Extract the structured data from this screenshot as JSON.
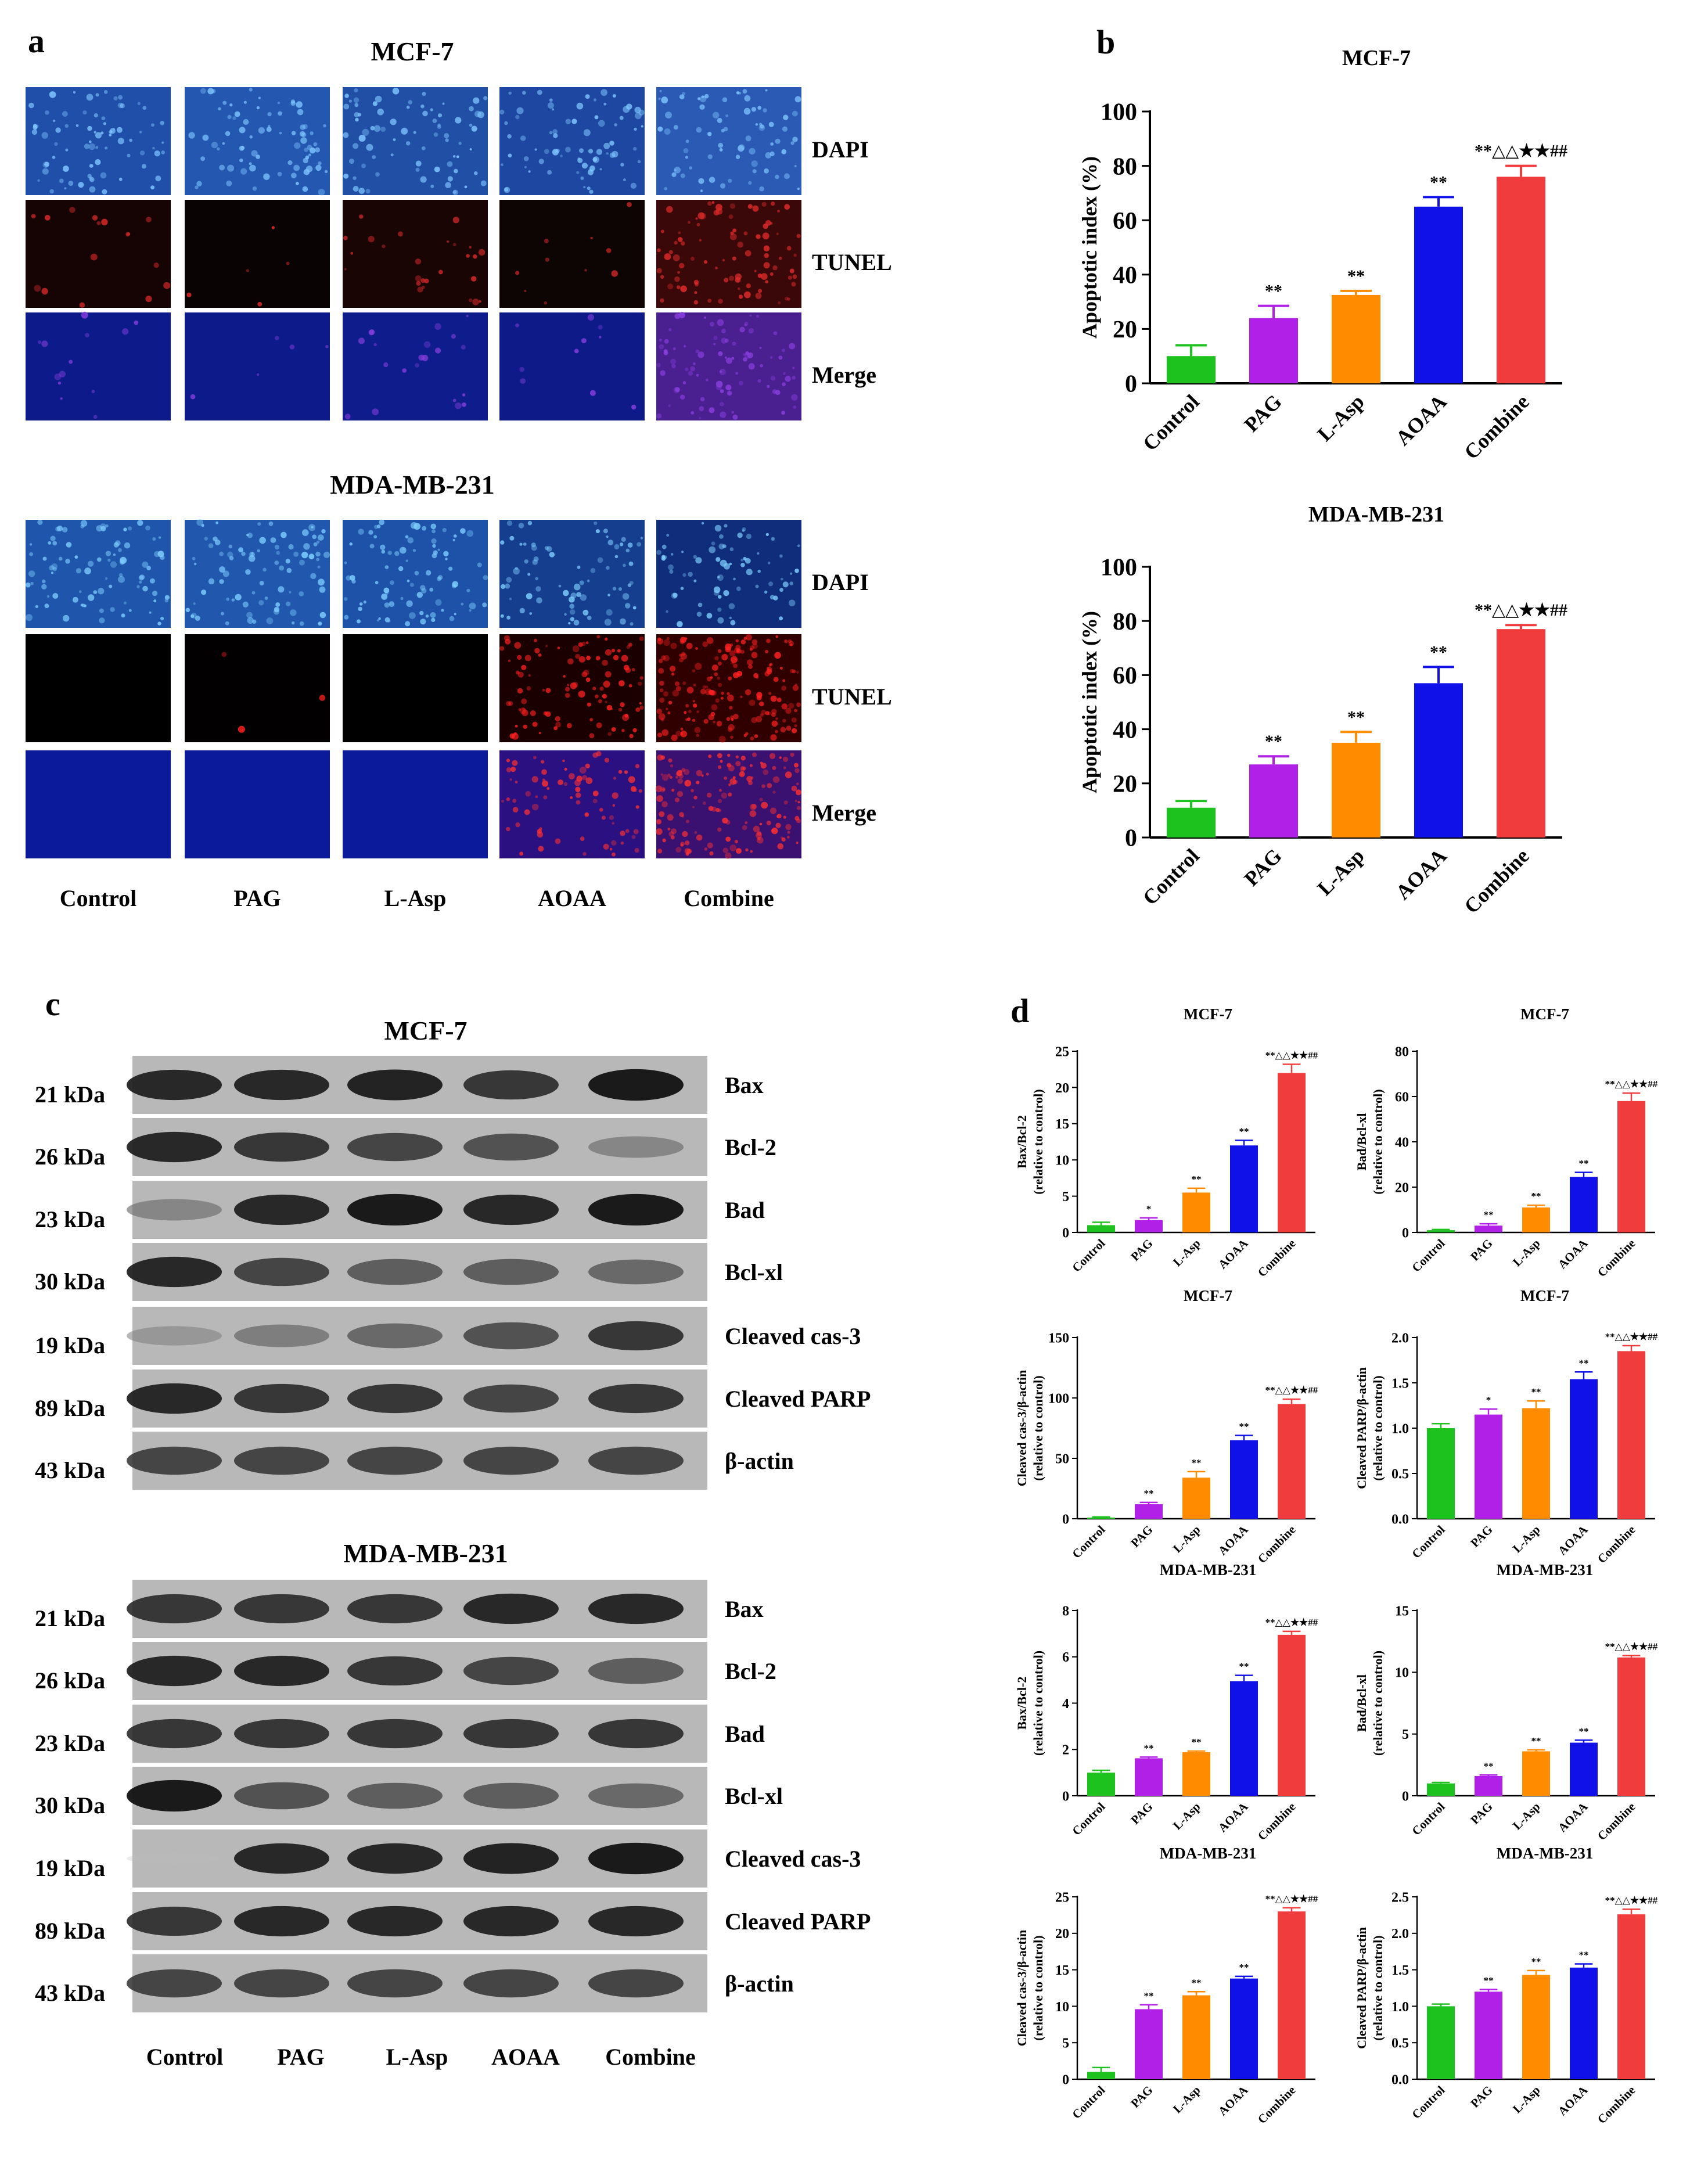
{
  "panels": {
    "a": {
      "letter": "a",
      "treatments": [
        "Control",
        "PAG",
        "L-Asp",
        "AOAA",
        "Combine"
      ],
      "channels": [
        "DAPI",
        "TUNEL",
        "Merge"
      ],
      "blocks": [
        {
          "cell_line": "MCF-7",
          "tiles": [
            {
              "channel": "DAPI",
              "colors": [
                "#1f4fa8",
                "#2457b0",
                "#214fa6",
                "#1d47a0",
                "#2a5ab4"
              ],
              "dots": "#7fc8ff",
              "density": [
                0.3,
                0.3,
                0.3,
                0.3,
                0.3
              ]
            },
            {
              "channel": "TUNEL",
              "colors": [
                "#160404",
                "#0a0303",
                "#1a0505",
                "#0d0404",
                "#3a0808"
              ],
              "dots": "#e02a2a",
              "density": [
                0.06,
                0.02,
                0.1,
                0.04,
                0.35
              ]
            },
            {
              "channel": "Merge",
              "colors": [
                "#0d1a8a",
                "#0d1a8a",
                "#0f1c8c",
                "#0e1a88",
                "#4a1f90"
              ],
              "dots": "#8a3fe0",
              "density": [
                0.05,
                0.02,
                0.08,
                0.04,
                0.35
              ]
            }
          ]
        },
        {
          "cell_line": "MDA-MB-231",
          "tiles": [
            {
              "channel": "DAPI",
              "colors": [
                "#1f55aa",
                "#2157ad",
                "#1e52a8",
                "#163e8e",
                "#0f2d7a"
              ],
              "dots": "#7ed0ff",
              "density": [
                0.35,
                0.35,
                0.35,
                0.3,
                0.3
              ]
            },
            {
              "channel": "TUNEL",
              "colors": [
                "#000000",
                "#020000",
                "#000000",
                "#1a0000",
                "#300000"
              ],
              "dots": "#ff2020",
              "density": [
                0,
                0.01,
                0,
                0.4,
                0.7
              ]
            },
            {
              "channel": "Merge",
              "colors": [
                "#0b1a9a",
                "#0b1a9a",
                "#0b1a9a",
                "#2a1080",
                "#3a1070"
              ],
              "dots": "#ff3030",
              "density": [
                0,
                0,
                0,
                0.3,
                0.6
              ]
            }
          ]
        }
      ]
    },
    "b": {
      "letter": "b",
      "ylabel": "Apoptotic index (%)",
      "categories": [
        "Control",
        "PAG",
        "L-Asp",
        "AOAA",
        "Combine"
      ],
      "colors": [
        "#1ec21e",
        "#b020e6",
        "#ff8c00",
        "#1010e8",
        "#f03c3c"
      ]
    },
    "c": {
      "letter": "c",
      "treatments": [
        "Control",
        "PAG",
        "L-Asp",
        "AOAA",
        "Combine"
      ],
      "blocks": [
        {
          "cell_line": "MCF-7",
          "rows": [
            {
              "kda": "21 kDa",
              "protein": "Bax",
              "intensity": [
                0.9,
                0.9,
                0.92,
                0.85,
                0.95
              ]
            },
            {
              "kda": "26 kDa",
              "protein": "Bcl-2",
              "intensity": [
                0.9,
                0.85,
                0.8,
                0.75,
                0.5
              ]
            },
            {
              "kda": "23 kDa",
              "protein": "Bad",
              "intensity": [
                0.5,
                0.9,
                0.95,
                0.9,
                0.95
              ]
            },
            {
              "kda": "30 kDa",
              "protein": "Bcl-xl",
              "intensity": [
                0.9,
                0.8,
                0.7,
                0.7,
                0.65
              ]
            },
            {
              "kda": "19 kDa",
              "protein": "Cleaved cas-3",
              "intensity": [
                0.4,
                0.55,
                0.65,
                0.75,
                0.85
              ]
            },
            {
              "kda": "89 kDa",
              "protein": "Cleaved PARP",
              "intensity": [
                0.9,
                0.85,
                0.85,
                0.8,
                0.85
              ]
            },
            {
              "kda": "43 kDa",
              "protein": "β-actin",
              "intensity": [
                0.8,
                0.8,
                0.8,
                0.8,
                0.8
              ]
            }
          ]
        },
        {
          "cell_line": "MDA-MB-231",
          "rows": [
            {
              "kda": "21 kDa",
              "protein": "Bax",
              "intensity": [
                0.85,
                0.85,
                0.85,
                0.9,
                0.9
              ]
            },
            {
              "kda": "26 kDa",
              "protein": "Bcl-2",
              "intensity": [
                0.9,
                0.9,
                0.85,
                0.8,
                0.7
              ]
            },
            {
              "kda": "23 kDa",
              "protein": "Bad",
              "intensity": [
                0.85,
                0.85,
                0.85,
                0.85,
                0.85
              ]
            },
            {
              "kda": "30 kDa",
              "protein": "Bcl-xl",
              "intensity": [
                0.95,
                0.75,
                0.7,
                0.7,
                0.65
              ]
            },
            {
              "kda": "19 kDa",
              "protein": "Cleaved cas-3",
              "intensity": [
                0.05,
                0.9,
                0.9,
                0.92,
                0.95
              ]
            },
            {
              "kda": "89 kDa",
              "protein": "Cleaved PARP",
              "intensity": [
                0.85,
                0.9,
                0.9,
                0.9,
                0.9
              ]
            },
            {
              "kda": "43 kDa",
              "protein": "β-actin",
              "intensity": [
                0.8,
                0.8,
                0.8,
                0.8,
                0.8
              ]
            }
          ]
        }
      ]
    },
    "d": {
      "letter": "d",
      "categories": [
        "Control",
        "PAG",
        "L-Asp",
        "AOAA",
        "Combine"
      ],
      "colors": [
        "#1ec21e",
        "#b020e6",
        "#ff8c00",
        "#1010e8",
        "#f03c3c"
      ]
    }
  },
  "chart_data": [
    {
      "id": "b1",
      "type": "bar",
      "title": "MCF-7",
      "ylabel": "Apoptotic index (%)",
      "categories": [
        "Control",
        "PAG",
        "L-Asp",
        "AOAA",
        "Combine"
      ],
      "values": [
        10,
        24,
        32.5,
        65,
        76
      ],
      "errors": [
        4,
        4.5,
        1.5,
        3.5,
        4
      ],
      "ylim": [
        0,
        100
      ],
      "ticks": [
        0,
        20,
        40,
        60,
        80,
        100
      ],
      "annotations": [
        "",
        "**",
        "**",
        "**",
        "**△△★★##"
      ]
    },
    {
      "id": "b2",
      "type": "bar",
      "title": "MDA-MB-231",
      "ylabel": "Apoptotic index (%)",
      "categories": [
        "Control",
        "PAG",
        "L-Asp",
        "AOAA",
        "Combine"
      ],
      "values": [
        11,
        27,
        35,
        57,
        77
      ],
      "errors": [
        2.5,
        3,
        4,
        6,
        1.5
      ],
      "ylim": [
        0,
        100
      ],
      "ticks": [
        0,
        20,
        40,
        60,
        80,
        100
      ],
      "annotations": [
        "",
        "**",
        "**",
        "**",
        "**△△★★##"
      ]
    },
    {
      "id": "d1",
      "type": "bar",
      "title": "MCF-7",
      "ylabel": "Bax/Bcl-2",
      "ylabel2": "(relative to control)",
      "categories": [
        "Control",
        "PAG",
        "L-Asp",
        "AOAA",
        "Combine"
      ],
      "values": [
        1,
        1.7,
        5.5,
        12,
        22
      ],
      "errors": [
        0.4,
        0.3,
        0.6,
        0.7,
        1.2
      ],
      "ylim": [
        0,
        25
      ],
      "ticks": [
        0,
        5,
        10,
        15,
        20,
        25
      ],
      "annotations": [
        "",
        "*",
        "**",
        "**",
        "**△△★★##"
      ]
    },
    {
      "id": "d2",
      "type": "bar",
      "title": "MCF-7",
      "ylabel": "Bad/Bcl-xl",
      "ylabel2": "(relative to control)",
      "categories": [
        "Control",
        "PAG",
        "L-Asp",
        "AOAA",
        "Combine"
      ],
      "values": [
        1,
        3,
        11,
        24.5,
        58
      ],
      "errors": [
        0.3,
        0.8,
        1,
        2,
        3.5
      ],
      "ylim": [
        0,
        80
      ],
      "ticks": [
        0,
        20,
        40,
        60,
        80
      ],
      "annotations": [
        "",
        "**",
        "**",
        "**",
        "**△△★★##"
      ]
    },
    {
      "id": "d3",
      "type": "bar",
      "title": "MCF-7",
      "ylabel": "Cleaved cas-3/β-actin",
      "ylabel2": "(relative to control)",
      "categories": [
        "Control",
        "PAG",
        "L-Asp",
        "AOAA",
        "Combine"
      ],
      "values": [
        1,
        12,
        34,
        65,
        95
      ],
      "errors": [
        0.5,
        1.5,
        5,
        4,
        4
      ],
      "ylim": [
        0,
        150
      ],
      "ticks": [
        0,
        50,
        100,
        150
      ],
      "annotations": [
        "",
        "**",
        "**",
        "**",
        "**△△★★##"
      ]
    },
    {
      "id": "d4",
      "type": "bar",
      "title": "MCF-7",
      "ylabel": "Cleaved PARP/β-actin",
      "ylabel2": "(relative to control)",
      "categories": [
        "Control",
        "PAG",
        "L-Asp",
        "AOAA",
        "Combine"
      ],
      "values": [
        1,
        1.15,
        1.22,
        1.54,
        1.85
      ],
      "errors": [
        0.05,
        0.06,
        0.08,
        0.08,
        0.06
      ],
      "ylim": [
        0,
        2.0
      ],
      "ticks": [
        0.0,
        0.5,
        1.0,
        1.5,
        2.0
      ],
      "annotations": [
        "",
        "*",
        "**",
        "**",
        "**△△★★##"
      ]
    },
    {
      "id": "d5",
      "type": "bar",
      "title": "MDA-MB-231",
      "ylabel": "Bax/Bcl-2",
      "ylabel2": "(relative to control)",
      "categories": [
        "Control",
        "PAG",
        "L-Asp",
        "AOAA",
        "Combine"
      ],
      "values": [
        1,
        1.62,
        1.88,
        4.95,
        6.95
      ],
      "errors": [
        0.1,
        0.05,
        0.05,
        0.25,
        0.15
      ],
      "ylim": [
        0,
        8
      ],
      "ticks": [
        0,
        2,
        4,
        6,
        8
      ],
      "annotations": [
        "",
        "**",
        "**",
        "**",
        "**△△★★##"
      ]
    },
    {
      "id": "d6",
      "type": "bar",
      "title": "MDA-MB-231",
      "ylabel": "Bad/Bcl-xl",
      "ylabel2": "(relative to control)",
      "categories": [
        "Control",
        "PAG",
        "L-Asp",
        "AOAA",
        "Combine"
      ],
      "values": [
        1,
        1.6,
        3.6,
        4.3,
        11.2
      ],
      "errors": [
        0.08,
        0.08,
        0.12,
        0.2,
        0.15
      ],
      "ylim": [
        0,
        15
      ],
      "ticks": [
        0,
        5,
        10,
        15
      ],
      "annotations": [
        "",
        "**",
        "**",
        "**",
        "**△△★★##"
      ]
    },
    {
      "id": "d7",
      "type": "bar",
      "title": "MDA-MB-231",
      "ylabel": "Cleaved cas-3/β-actin",
      "ylabel2": "(relative to control)",
      "categories": [
        "Control",
        "PAG",
        "L-Asp",
        "AOAA",
        "Combine"
      ],
      "values": [
        1,
        9.6,
        11.5,
        13.8,
        23
      ],
      "errors": [
        0.6,
        0.6,
        0.5,
        0.3,
        0.5
      ],
      "ylim": [
        0,
        25
      ],
      "ticks": [
        0,
        5,
        10,
        15,
        20,
        25
      ],
      "annotations": [
        "",
        "**",
        "**",
        "**",
        "**△△★★##"
      ]
    },
    {
      "id": "d8",
      "type": "bar",
      "title": "MDA-MB-231",
      "ylabel": "Cleaved PARP/β-actin",
      "ylabel2": "(relative to control)",
      "categories": [
        "Control",
        "PAG",
        "L-Asp",
        "AOAA",
        "Combine"
      ],
      "values": [
        1,
        1.2,
        1.43,
        1.53,
        2.26
      ],
      "errors": [
        0.03,
        0.03,
        0.06,
        0.05,
        0.07
      ],
      "ylim": [
        0,
        2.5
      ],
      "ticks": [
        0.0,
        0.5,
        1.0,
        1.5,
        2.0,
        2.5
      ],
      "annotations": [
        "",
        "**",
        "**",
        "**",
        "**△△★★##"
      ]
    }
  ]
}
